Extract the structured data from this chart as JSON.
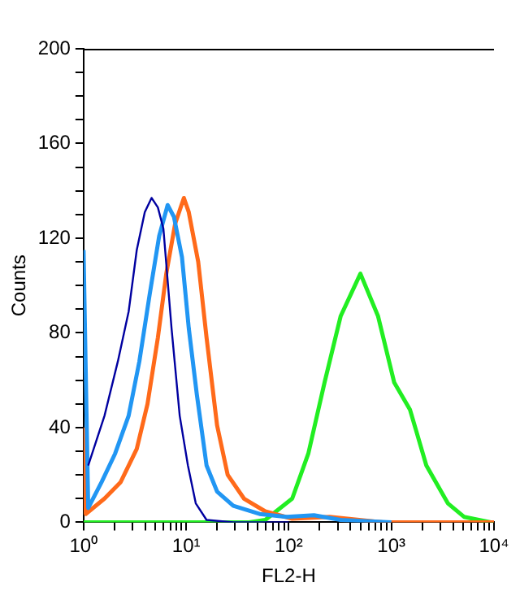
{
  "chart_data": {
    "type": "line",
    "xlabel": "FL2-H",
    "ylabel": "Counts",
    "log": "x",
    "xlim": [
      1,
      10000
    ],
    "ylim": [
      0,
      200
    ],
    "xticks": [
      {
        "value": 1,
        "label": "10⁰"
      },
      {
        "value": 2,
        "label": null
      },
      {
        "value": 3,
        "label": null
      },
      {
        "value": 4,
        "label": null
      },
      {
        "value": 5,
        "label": null
      },
      {
        "value": 6,
        "label": null
      },
      {
        "value": 7,
        "label": null
      },
      {
        "value": 8,
        "label": null
      },
      {
        "value": 9,
        "label": null
      },
      {
        "value": 10,
        "label": "10¹"
      },
      {
        "value": 20,
        "label": null
      },
      {
        "value": 30,
        "label": null
      },
      {
        "value": 40,
        "label": null
      },
      {
        "value": 50,
        "label": null
      },
      {
        "value": 60,
        "label": null
      },
      {
        "value": 70,
        "label": null
      },
      {
        "value": 80,
        "label": null
      },
      {
        "value": 90,
        "label": null
      },
      {
        "value": 100,
        "label": "10²"
      },
      {
        "value": 200,
        "label": null
      },
      {
        "value": 300,
        "label": null
      },
      {
        "value": 400,
        "label": null
      },
      {
        "value": 500,
        "label": null
      },
      {
        "value": 600,
        "label": null
      },
      {
        "value": 700,
        "label": null
      },
      {
        "value": 800,
        "label": null
      },
      {
        "value": 900,
        "label": null
      },
      {
        "value": 1000,
        "label": "10³"
      },
      {
        "value": 2000,
        "label": null
      },
      {
        "value": 3000,
        "label": null
      },
      {
        "value": 4000,
        "label": null
      },
      {
        "value": 5000,
        "label": null
      },
      {
        "value": 6000,
        "label": null
      },
      {
        "value": 7000,
        "label": null
      },
      {
        "value": 8000,
        "label": null
      },
      {
        "value": 9000,
        "label": null
      },
      {
        "value": 10000,
        "label": "10⁴"
      }
    ],
    "yticks": [
      0,
      {
        "value": 10,
        "label": null
      },
      {
        "value": 20,
        "label": null
      },
      {
        "value": 30,
        "label": null
      },
      40,
      {
        "value": 50,
        "label": null
      },
      {
        "value": 60,
        "label": null
      },
      {
        "value": 70,
        "label": null
      },
      80,
      {
        "value": 90,
        "label": null
      },
      {
        "value": 100,
        "label": null
      },
      {
        "value": 110,
        "label": null
      },
      120,
      {
        "value": 130,
        "label": null
      },
      {
        "value": 140,
        "label": null
      },
      {
        "value": 150,
        "label": null
      },
      160,
      {
        "value": 170,
        "label": null
      },
      {
        "value": 180,
        "label": null
      },
      {
        "value": 190,
        "label": null
      },
      200
    ],
    "grid": false,
    "legend": false,
    "marker": "none",
    "line_style": "solid",
    "series": [
      {
        "color": "#0000a0",
        "x": [
          1.11,
          1.6,
          2.16,
          2.75,
          3.3,
          3.95,
          4.6,
          5.3,
          6.0,
          7.2,
          8.65,
          10.4,
          12.4,
          15.8,
          28.8,
          100
        ],
        "values": [
          24,
          45,
          68,
          89,
          115,
          131,
          137,
          133,
          124,
          82,
          45,
          24,
          8,
          1,
          0,
          0
        ]
      },
      {
        "color": "#2196f3",
        "x": [
          1,
          1.11,
          1.5,
          2.03,
          2.75,
          3.5,
          4.4,
          5.46,
          6.6,
          7.6,
          9.1,
          10.6,
          12.7,
          15.8,
          20,
          28.8,
          52,
          95,
          176,
          320,
          1000
        ],
        "values": [
          115,
          6,
          17,
          29,
          45,
          68,
          96,
          121,
          134,
          129,
          112,
          82,
          54,
          24,
          13,
          7,
          3.5,
          2.3,
          3,
          1,
          0
        ]
      },
      {
        "color": "#ff6a1a",
        "x": [
          1,
          1.05,
          1.6,
          2.3,
          3.3,
          4.2,
          5.3,
          6.4,
          7.8,
          9.5,
          10.6,
          13.1,
          15.8,
          20,
          25.4,
          36.6,
          59,
          108,
          250,
          830,
          10000
        ],
        "values": [
          40,
          3.5,
          10,
          17,
          31,
          50,
          78,
          105,
          126,
          137,
          131,
          110,
          78,
          41,
          20,
          10,
          4.6,
          1.5,
          2.3,
          0,
          0
        ]
      },
      {
        "color": "#22ee22",
        "x": [
          1,
          41,
          59,
          108,
          155,
          223,
          320,
          499,
          742,
          1066,
          1520,
          2190,
          3550,
          5100,
          9300,
          10000
        ],
        "values": [
          0,
          0,
          1,
          10,
          29,
          59,
          87,
          105,
          87,
          59,
          47.5,
          24,
          8,
          2.3,
          0,
          0
        ]
      }
    ]
  }
}
